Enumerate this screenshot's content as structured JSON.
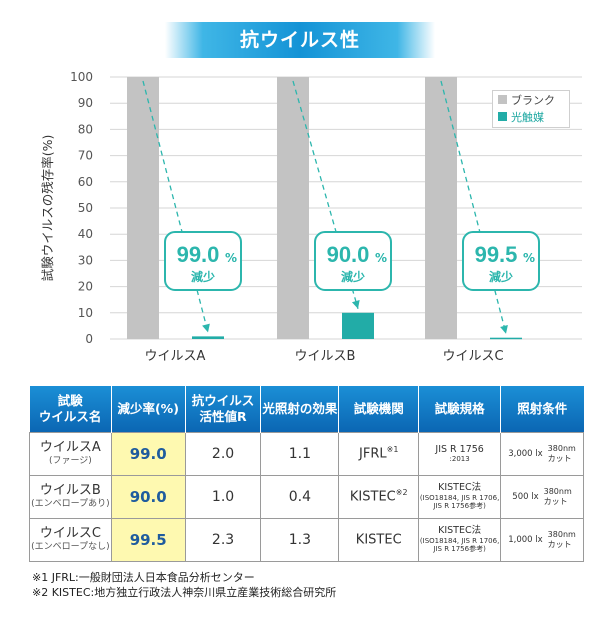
{
  "banner": "抗ウイルス性",
  "legend": {
    "blank": "ブランク",
    "photocatalyst": "光触媒"
  },
  "colors": {
    "blank": "#c3c3c3",
    "photocatalyst": "#22aca7",
    "callout": "#2cb6ad",
    "header": "#0e72c0",
    "rate_bg": "#fef9b0"
  },
  "chart_data": {
    "type": "bar",
    "ylabel": "試験ウイルスの残存率(%)",
    "ylim": [
      0,
      100
    ],
    "yticks": [
      0,
      10,
      20,
      30,
      40,
      50,
      60,
      70,
      80,
      90,
      100
    ],
    "categories": [
      "ウイルスA",
      "ウイルスB",
      "ウイルスC"
    ],
    "series": [
      {
        "name": "ブランク",
        "values": [
          100,
          100,
          100
        ]
      },
      {
        "name": "光触媒",
        "values": [
          1.0,
          10.0,
          0.5
        ]
      }
    ],
    "annotations": [
      {
        "value": "99.0",
        "unit": "%",
        "label": "減少"
      },
      {
        "value": "90.0",
        "unit": "%",
        "label": "減少"
      },
      {
        "value": "99.5",
        "unit": "%",
        "label": "減少"
      }
    ],
    "grid": true,
    "legend_position": "top-right"
  },
  "table": {
    "headers": {
      "virus": [
        "試験",
        "ウイルス名"
      ],
      "rate": "減少率(%)",
      "activity": [
        "抗ウイルス",
        "活性値R"
      ],
      "light": "光照射の効果",
      "agency": "試験機関",
      "standard": "試験規格",
      "condition": "照射条件"
    },
    "rows": [
      {
        "name": "ウイルスA",
        "sub": "(ファージ)",
        "rate": "99.0",
        "activity": "2.0",
        "light": "1.1",
        "agency": "JFRL",
        "agency_sup": "※1",
        "std_main": "JIS R 1756",
        "std_sub": ":2013",
        "cond_lx": "3,000 lx",
        "cond_nm": "380nm",
        "cond_cut": "カット"
      },
      {
        "name": "ウイルスB",
        "sub": "(エンベロープあり)",
        "rate": "90.0",
        "activity": "1.0",
        "light": "0.4",
        "agency": "KISTEC",
        "agency_sup": "※2",
        "std_main": "KISTEC法",
        "std_sub": "(ISO18184, JIS R 1706, JIS R 1756参考)",
        "cond_lx": "500 lx",
        "cond_nm": "380nm",
        "cond_cut": "カット"
      },
      {
        "name": "ウイルスC",
        "sub": "(エンベロープなし)",
        "rate": "99.5",
        "activity": "2.3",
        "light": "1.3",
        "agency": "KISTEC",
        "agency_sup": "",
        "std_main": "KISTEC法",
        "std_sub": "(ISO18184, JIS R 1706, JIS R 1756参考)",
        "cond_lx": "1,000 lx",
        "cond_nm": "380nm",
        "cond_cut": "カット"
      }
    ]
  },
  "footnotes": [
    "※1 JFRL:一般財団法人日本食品分析センター",
    "※2 KISTEC:地方独立行政法人神奈川県立産業技術総合研究所"
  ]
}
